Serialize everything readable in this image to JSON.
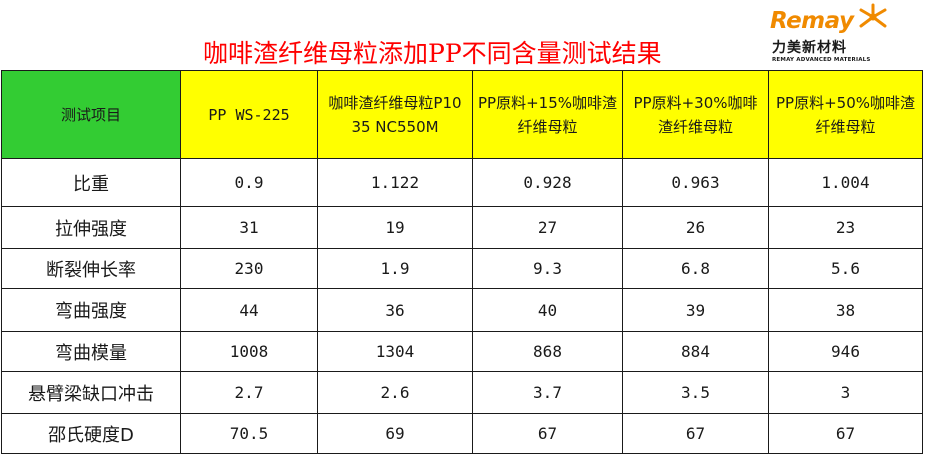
{
  "title": "咖啡渣纤维母粒添加PP不同含量测试结果",
  "logo": {
    "wordmark": "Remay",
    "chinese_name": "力美新材料",
    "english_name": "REMAY ADVANCED MATERIALS",
    "colors": {
      "wordmark": "#f08a00",
      "text": "#1a1a1a"
    }
  },
  "table": {
    "headers": [
      "测试项目",
      "PP WS-225",
      "咖啡渣纤维母粒P1035 NC550M",
      "PP原料+15%咖啡渣纤维母粒",
      "PP原料+30%咖啡渣纤维母粒",
      "PP原料+50%咖啡渣纤维母粒"
    ],
    "header_colors": {
      "first": "#33cc33",
      "rest": "#ffff00"
    },
    "rows": [
      {
        "label": "比重",
        "values": [
          "0.9",
          "1.122",
          "0.928",
          "0.963",
          "1.004"
        ]
      },
      {
        "label": "拉伸强度",
        "values": [
          "31",
          "19",
          "27",
          "26",
          "23"
        ]
      },
      {
        "label": "断裂伸长率",
        "values": [
          "230",
          "1.9",
          "9.3",
          "6.8",
          "5.6"
        ]
      },
      {
        "label": "弯曲强度",
        "values": [
          "44",
          "36",
          "40",
          "39",
          "38"
        ]
      },
      {
        "label": "弯曲模量",
        "values": [
          "1008",
          "1304",
          "868",
          "884",
          "946"
        ]
      },
      {
        "label": "悬臂梁缺口冲击",
        "values": [
          "2.7",
          "2.6",
          "3.7",
          "3.5",
          "3"
        ]
      },
      {
        "label": "邵氏硬度D",
        "values": [
          "70.5",
          "69",
          "67",
          "67",
          "67"
        ]
      }
    ]
  }
}
